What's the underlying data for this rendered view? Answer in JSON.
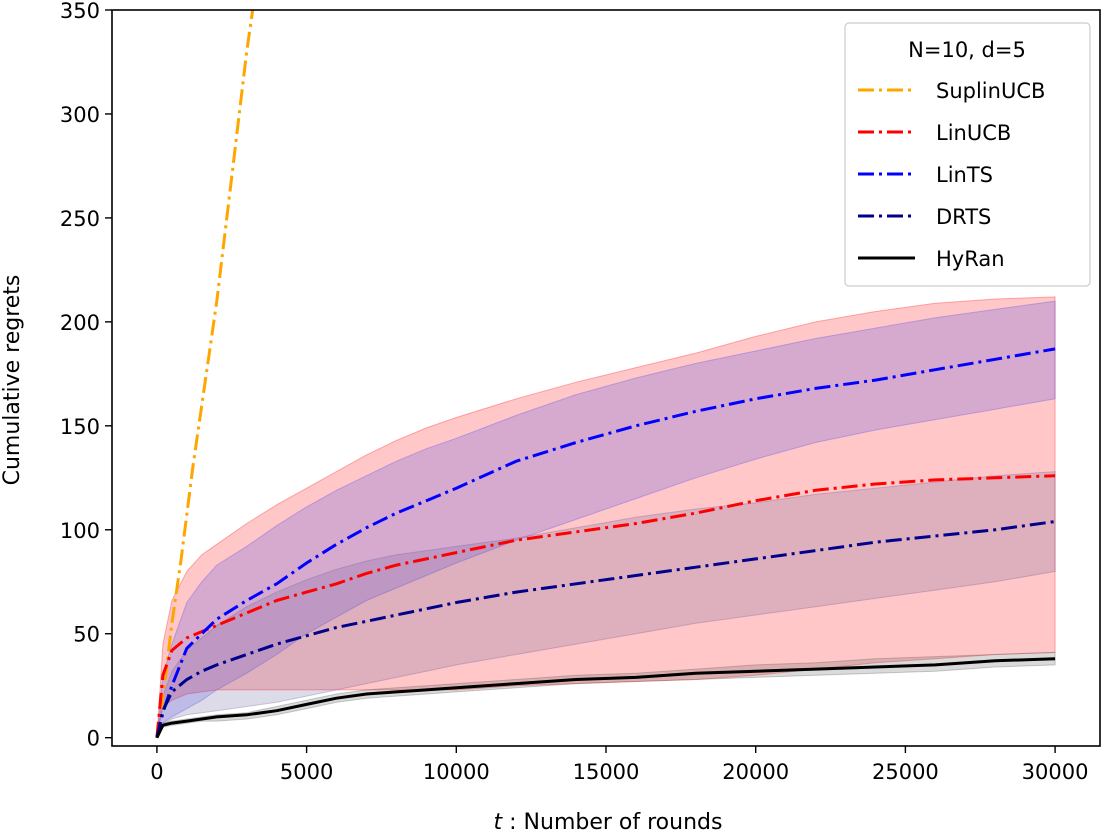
{
  "chart_data": {
    "type": "line",
    "xlabel_var": "t",
    "xlabel": " : Number of rounds",
    "ylabel": "Cumulative regrets",
    "xlim": [
      -1500,
      31500
    ],
    "ylim": [
      -4,
      350
    ],
    "xticks": [
      0,
      5000,
      10000,
      15000,
      20000,
      25000,
      30000
    ],
    "yticks": [
      0,
      50,
      100,
      150,
      200,
      250,
      300,
      350
    ],
    "grid": false,
    "legend": {
      "title": "N=10, d=5",
      "placement": "top-right"
    },
    "series": [
      {
        "name": "SuplinUCB",
        "color": "#FFA500",
        "style": "dashdot",
        "x": [
          0,
          100,
          250,
          500,
          800,
          1200,
          1600,
          2000,
          2500,
          3000,
          3200
        ],
        "y": [
          0,
          10,
          25,
          55,
          85,
          130,
          170,
          210,
          270,
          330,
          350
        ]
      },
      {
        "name": "LinUCB",
        "color": "#FF0000",
        "style": "dashdot",
        "band_color": "#FF0000",
        "x": [
          0,
          200,
          500,
          1000,
          1500,
          2000,
          3000,
          4000,
          5000,
          6000,
          7000,
          8000,
          9000,
          10000,
          12000,
          14000,
          16000,
          18000,
          20000,
          22000,
          24000,
          26000,
          28000,
          30000
        ],
        "y": [
          0,
          30,
          42,
          48,
          51,
          54,
          60,
          66,
          70,
          74,
          79,
          83,
          86,
          89,
          95,
          99,
          103,
          108,
          114,
          119,
          122,
          124,
          125,
          126
        ],
        "lower": [
          0,
          15,
          18,
          21,
          22,
          23,
          23,
          23,
          23,
          23,
          23,
          23,
          23,
          23,
          25,
          26,
          27,
          28,
          30,
          33,
          36,
          38,
          40,
          41
        ],
        "upper": [
          0,
          45,
          66,
          80,
          88,
          93,
          103,
          112,
          120,
          128,
          136,
          143,
          149,
          154,
          163,
          171,
          178,
          185,
          193,
          200,
          205,
          209,
          211,
          212
        ]
      },
      {
        "name": "LinTS",
        "color": "#0000FF",
        "style": "dashdot",
        "band_color": "#4444EE",
        "x": [
          0,
          200,
          500,
          1000,
          1500,
          2000,
          3000,
          4000,
          5000,
          6000,
          7000,
          8000,
          9000,
          10000,
          12000,
          14000,
          16000,
          18000,
          20000,
          22000,
          24000,
          26000,
          28000,
          30000
        ],
        "y": [
          0,
          12,
          25,
          43,
          50,
          57,
          66,
          74,
          84,
          93,
          101,
          108,
          114,
          120,
          133,
          142,
          150,
          157,
          163,
          168,
          172,
          177,
          182,
          187
        ],
        "lower": [
          0,
          7,
          10,
          14,
          18,
          23,
          31,
          40,
          50,
          58,
          66,
          72,
          78,
          84,
          95,
          105,
          115,
          125,
          134,
          142,
          148,
          153,
          158,
          163
        ],
        "upper": [
          0,
          30,
          45,
          65,
          75,
          83,
          92,
          102,
          111,
          119,
          126,
          133,
          139,
          144,
          155,
          165,
          173,
          180,
          186,
          192,
          197,
          202,
          206,
          210
        ]
      },
      {
        "name": "DRTS",
        "color": "#00008B",
        "style": "dashdot",
        "band_color": "#6A5A9A",
        "x": [
          0,
          200,
          500,
          1000,
          1500,
          2000,
          3000,
          4000,
          5000,
          6000,
          7000,
          8000,
          9000,
          10000,
          12000,
          14000,
          16000,
          18000,
          20000,
          22000,
          24000,
          26000,
          28000,
          30000
        ],
        "y": [
          0,
          13,
          22,
          28,
          32,
          35,
          40,
          45,
          49,
          53,
          56,
          59,
          62,
          65,
          70,
          74,
          78,
          82,
          86,
          90,
          94,
          97,
          100,
          104
        ],
        "lower": [
          0,
          6,
          9,
          11,
          12,
          13,
          15,
          17,
          20,
          23,
          26,
          29,
          32,
          35,
          40,
          45,
          50,
          55,
          59,
          63,
          67,
          71,
          75,
          80
        ],
        "upper": [
          0,
          20,
          32,
          42,
          48,
          54,
          63,
          70,
          76,
          81,
          85,
          88,
          90,
          92,
          96,
          101,
          106,
          110,
          113,
          117,
          120,
          123,
          126,
          128
        ]
      },
      {
        "name": "HyRan",
        "color": "#000000",
        "style": "solid",
        "band_color": "#555555",
        "x": [
          0,
          200,
          500,
          1000,
          1500,
          2000,
          3000,
          4000,
          5000,
          6000,
          7000,
          8000,
          9000,
          10000,
          12000,
          14000,
          16000,
          18000,
          20000,
          22000,
          24000,
          26000,
          28000,
          30000
        ],
        "y": [
          0,
          6,
          7,
          8,
          9,
          10,
          11,
          13,
          16,
          19,
          21,
          22,
          23,
          24,
          26,
          28,
          29,
          31,
          32,
          33,
          34,
          35,
          37,
          38
        ],
        "lower": [
          0,
          5,
          6,
          7,
          8,
          8,
          9,
          11,
          14,
          17,
          19,
          20,
          21,
          22,
          24,
          26,
          27,
          28,
          29,
          30,
          31,
          32,
          34,
          35
        ],
        "upper": [
          0,
          7,
          8,
          9,
          10,
          11,
          12,
          15,
          18,
          21,
          23,
          24,
          25,
          26,
          28,
          30,
          31,
          33,
          35,
          36,
          38,
          39,
          40,
          41
        ]
      }
    ]
  }
}
